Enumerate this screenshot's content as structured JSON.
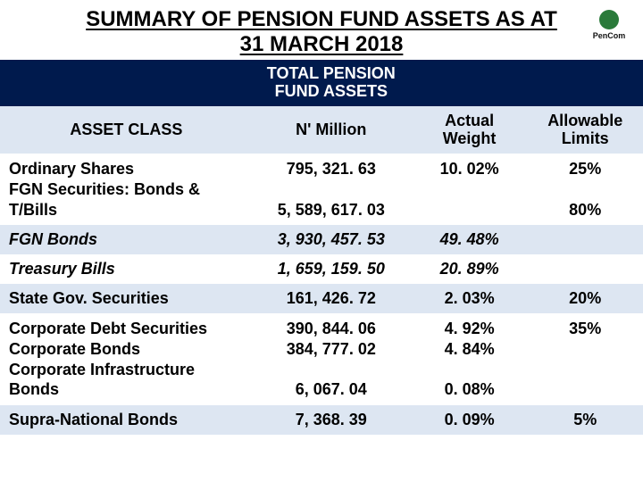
{
  "title_line1": "SUMMARY OF PENSION FUND ASSETS AS AT",
  "title_line2": "31 MARCH 2018",
  "logo_text": "PenCom",
  "table": {
    "header_row1": {
      "col1": "",
      "col2_line1": "TOTAL PENSION",
      "col2_line2": "FUND ASSETS",
      "col3": "",
      "col4": ""
    },
    "header_row2": {
      "col1": "ASSET CLASS",
      "col2": "N' Million",
      "col3_line1": "Actual",
      "col3_line2": "Weight",
      "col4_line1": "Allowable",
      "col4_line2": "Limits"
    },
    "rows": [
      {
        "stripe": "a",
        "c1_multi": [
          "Ordinary Shares",
          "FGN Securities: Bonds &",
          "T/Bills"
        ],
        "c2_multi": [
          "795, 321. 63",
          "",
          "5, 589, 617. 03"
        ],
        "c3_multi": [
          "10. 02%",
          "",
          ""
        ],
        "c4_multi": [
          "25%",
          "",
          "80%"
        ],
        "italic": false
      },
      {
        "stripe": "b",
        "c1": "FGN Bonds",
        "c2": "3, 930, 457. 53",
        "c3": "49. 48%",
        "c4": "",
        "italic": true
      },
      {
        "stripe": "a",
        "c1": "Treasury Bills",
        "c2": "1, 659, 159. 50",
        "c3": "20. 89%",
        "c4": "",
        "italic": true
      },
      {
        "stripe": "b",
        "c1": "State Gov. Securities",
        "c2": "161, 426. 72",
        "c3": "2. 03%",
        "c4": "20%",
        "italic": false
      },
      {
        "stripe": "a",
        "c1_multi": [
          "Corporate Debt Securities",
          "Corporate Bonds",
          "Corporate Infrastructure",
          "Bonds"
        ],
        "c2_multi": [
          "390, 844. 06",
          "384, 777. 02",
          "",
          "6, 067. 04"
        ],
        "c3_multi": [
          "4. 92%",
          "4. 84%",
          "",
          "0. 08%"
        ],
        "c4_multi": [
          "35%",
          "",
          "",
          ""
        ],
        "italic": false
      },
      {
        "stripe": "b",
        "c1": "Supra-National Bonds",
        "c2": "7, 368. 39",
        "c3": "0. 09%",
        "c4": "5%",
        "italic": false
      }
    ],
    "colors": {
      "header_bg": "#001a4d",
      "header_fg": "#ffffff",
      "stripe_light": "#ffffff",
      "stripe_tint": "#dde6f2"
    }
  }
}
